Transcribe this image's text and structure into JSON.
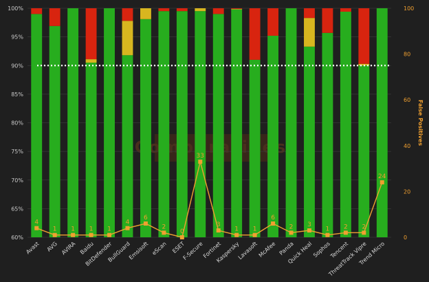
{
  "colors": {
    "background": "#1f1f1f",
    "protected": "#27ad1e",
    "user_dependent": "#d8b61f",
    "compromised": "#d8240f",
    "false_positives_line": "#f0a030",
    "threshold_line": "#ffffff",
    "grid": "#3a3a3a"
  },
  "watermark": {
    "text": "Comparatives"
  },
  "chart_data": {
    "type": "bar",
    "stacked": true,
    "categories": [
      "Avast",
      "AVG",
      "AVIRA",
      "Baidu",
      "BitDefender",
      "BullGuard",
      "Emsisoft",
      "eScan",
      "ESET",
      "F-Secure",
      "Fortinet",
      "Kaspersky",
      "Lavasoft",
      "McAfee",
      "Panda",
      "Quick Heal",
      "Sophos",
      "Tencent",
      "ThreatTrack Vipre",
      "Trend Micro"
    ],
    "series": [
      {
        "key": "protected",
        "values": [
          99.0,
          96.9,
          100.0,
          90.5,
          100.0,
          91.8,
          98.1,
          99.5,
          99.5,
          99.5,
          99.0,
          99.8,
          91.0,
          95.2,
          100.0,
          93.3,
          95.7,
          99.4,
          90.0,
          100.0
        ]
      },
      {
        "key": "user_dependent",
        "values": [
          0,
          0,
          0,
          0.6,
          0,
          6.0,
          1.9,
          0,
          0,
          0.5,
          0,
          0.1,
          0,
          0,
          0,
          5.0,
          0,
          0,
          0.3,
          0
        ]
      },
      {
        "key": "compromised",
        "values": [
          1.0,
          3.1,
          0,
          8.9,
          0,
          2.2,
          0,
          0.5,
          0.5,
          0,
          1.0,
          0.1,
          9.0,
          4.8,
          0,
          1.7,
          4.3,
          0.6,
          9.7,
          0
        ]
      }
    ],
    "ylim": [
      60,
      100
    ],
    "yticks": [
      "60%",
      "65%",
      "70%",
      "75%",
      "80%",
      "85%",
      "90%",
      "95%",
      "100%"
    ],
    "threshold": 90,
    "secondary_axis": {
      "title": "False Positives",
      "ylim": [
        0,
        100
      ],
      "yticks": [
        "0",
        "20",
        "40",
        "60",
        "80",
        "100"
      ]
    },
    "line_series": {
      "name": "False Positives",
      "values": [
        4,
        1,
        1,
        1,
        1,
        4,
        6,
        2,
        0,
        33,
        3,
        1,
        1,
        6,
        2,
        3,
        1,
        2,
        2,
        24
      ],
      "labels": [
        "4",
        "1",
        "1",
        "1",
        "1",
        "4",
        "6",
        "2",
        "0",
        "33",
        "3",
        "1",
        "1",
        "6",
        "2",
        "3",
        "1",
        "2",
        "2",
        "24"
      ]
    },
    "grid": true
  }
}
